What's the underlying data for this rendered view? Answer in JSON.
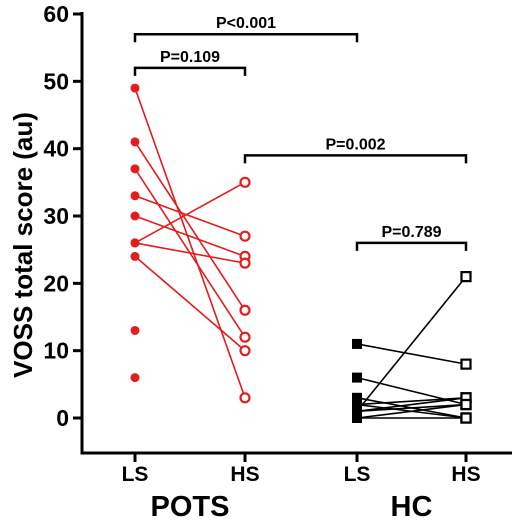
{
  "chart_data": {
    "type": "scatter",
    "ylabel": "VOSS total score (au)",
    "ylim": [
      0,
      60
    ],
    "yticks": [
      0,
      10,
      20,
      30,
      40,
      50,
      60
    ],
    "x_positions": [
      "LS",
      "HS",
      "LS",
      "HS"
    ],
    "groups": [
      {
        "label": "POTS",
        "positions": [
          0,
          1
        ],
        "color": "#e31c1c",
        "marker_ls": "filled-circle",
        "marker_hs": "open-circle"
      },
      {
        "label": "HC",
        "positions": [
          2,
          3
        ],
        "color": "#000000",
        "marker_ls": "filled-square",
        "marker_hs": "open-square"
      }
    ],
    "series": [
      {
        "group": "POTS",
        "paired": [
          [
            49,
            3
          ],
          [
            41,
            16
          ],
          [
            37,
            12
          ],
          [
            33,
            27
          ],
          [
            26,
            35
          ],
          [
            24,
            10
          ],
          [
            30,
            24
          ],
          [
            26,
            23
          ]
        ],
        "unpaired_ls": [
          13,
          6
        ]
      },
      {
        "group": "HC",
        "paired": [
          [
            11,
            8
          ],
          [
            6,
            2
          ],
          [
            3,
            0
          ],
          [
            2,
            3
          ],
          [
            1,
            21
          ],
          [
            1,
            3
          ],
          [
            0,
            0
          ],
          [
            2,
            0
          ],
          [
            1,
            2
          ],
          [
            0,
            2
          ]
        ],
        "unpaired_ls": []
      }
    ],
    "annotations": [
      {
        "text": "P<0.001",
        "from": 0,
        "to": 2,
        "level": 57
      },
      {
        "text": "P=0.109",
        "from": 0,
        "to": 1,
        "level": 52
      },
      {
        "text": "P=0.002",
        "from": 1,
        "to": 3,
        "level": 39
      },
      {
        "text": "P=0.789",
        "from": 2,
        "to": 3,
        "level": 26
      }
    ]
  }
}
